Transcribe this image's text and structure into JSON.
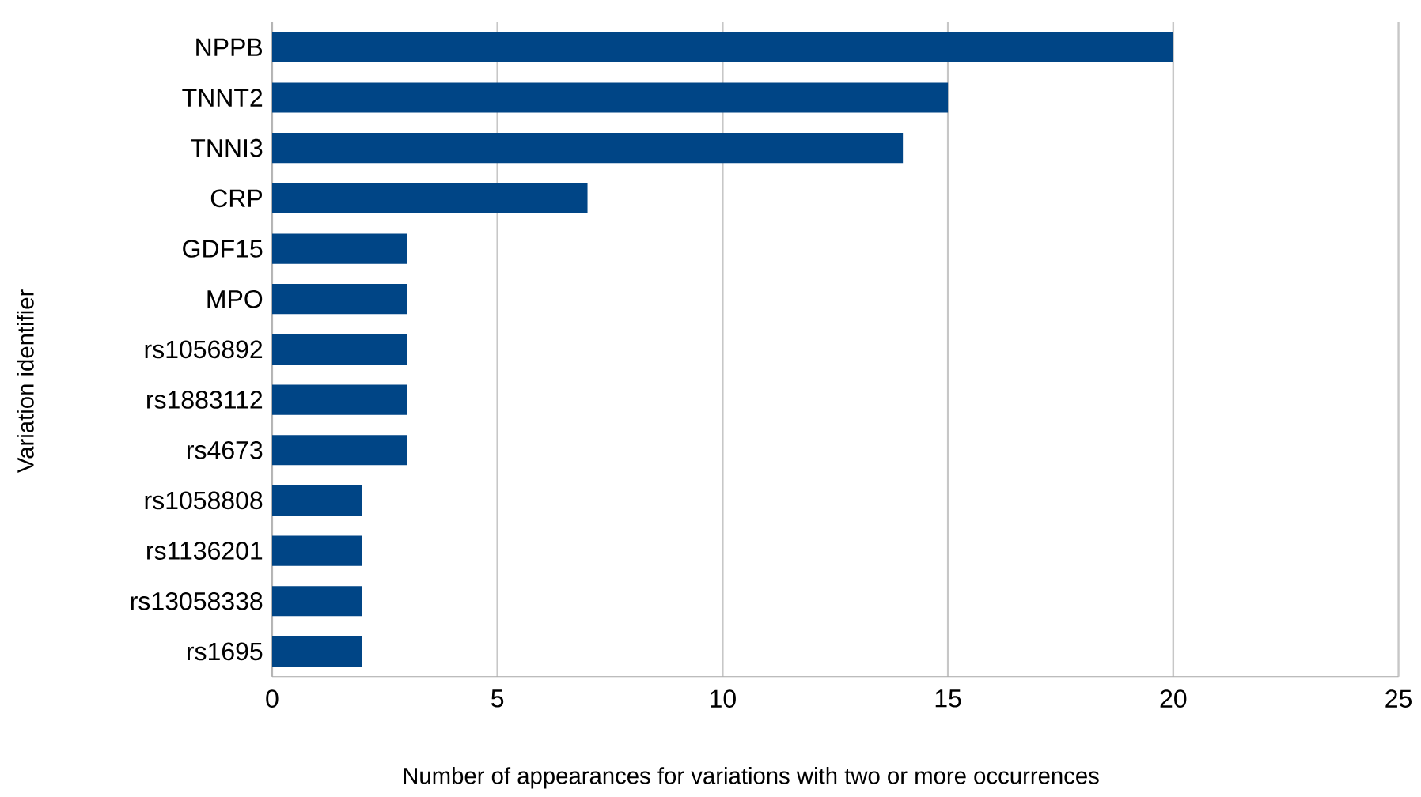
{
  "chart_data": {
    "type": "bar",
    "orientation": "horizontal",
    "xlabel": "Number of appearances for variations with two or more occurrences",
    "ylabel": "Variation identifier",
    "categories": [
      "NPPB",
      "TNNT2",
      "TNNI3",
      "CRP",
      "GDF15",
      "MPO",
      "rs1056892",
      "rs1883112",
      "rs4673",
      "rs1058808",
      "rs1136201",
      "rs13058338",
      "rs1695"
    ],
    "values": [
      20,
      15,
      14,
      7,
      3,
      3,
      3,
      3,
      3,
      2,
      2,
      2,
      2
    ],
    "color": "#004586",
    "xlim": [
      0,
      25
    ],
    "xticks": [
      0,
      5,
      10,
      15,
      20,
      25
    ],
    "grid": "x"
  }
}
